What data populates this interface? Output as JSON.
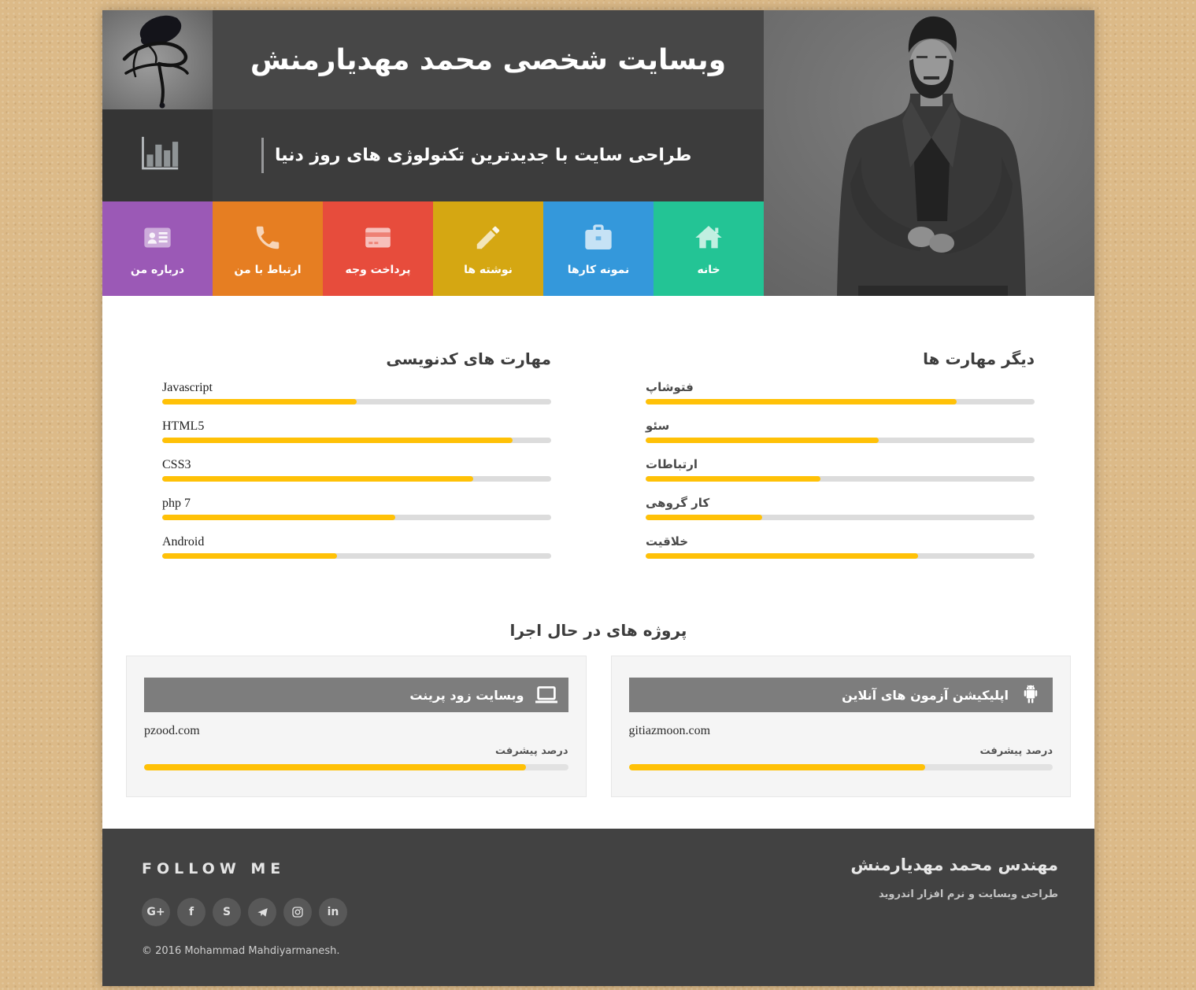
{
  "header": {
    "title": "وبسایت شخصی محمد مهدیارمنش",
    "tagline": "طراحی سایت با جدیدترین تکنولوژی های روز دنیا",
    "logo_icon": "calligraphy-logo",
    "stats_icon": "bar-chart-icon"
  },
  "nav": {
    "items": [
      {
        "label": "درباره من",
        "icon": "id-card-icon",
        "color": "#9b59b6"
      },
      {
        "label": "ارتباط با من",
        "icon": "phone-icon",
        "color": "#e67e22"
      },
      {
        "label": "پرداخت وجه",
        "icon": "credit-card-icon",
        "color": "#e74c3c"
      },
      {
        "label": "نوشته ها",
        "icon": "pencil-icon",
        "color": "#d5a712"
      },
      {
        "label": "نمونه کارها",
        "icon": "briefcase-icon",
        "color": "#3498db"
      },
      {
        "label": "خانه",
        "icon": "home-icon",
        "color": "#23c495"
      }
    ]
  },
  "skills": {
    "coding": {
      "title": "مهارت های کدنویسی",
      "items": [
        {
          "label": "Javascript",
          "percent": 50
        },
        {
          "label": "HTML5",
          "percent": 90
        },
        {
          "label": "CSS3",
          "percent": 80
        },
        {
          "label": "php 7",
          "percent": 60
        },
        {
          "label": "Android",
          "percent": 45
        }
      ]
    },
    "other": {
      "title": "دیگر مهارت ها",
      "items": [
        {
          "label": "فتوشاپ",
          "percent": 80
        },
        {
          "label": "سئو",
          "percent": 60
        },
        {
          "label": "ارتباطات",
          "percent": 45
        },
        {
          "label": "کار گروهی",
          "percent": 30
        },
        {
          "label": "خلاقیت",
          "percent": 70
        }
      ]
    }
  },
  "projects": {
    "title": "پروژه های در حال اجرا",
    "progress_label": "درصد پیشرفت",
    "items": [
      {
        "name": "وبسایت زود پرینت",
        "domain": "pzood.com",
        "percent": 90,
        "icon": "laptop-icon"
      },
      {
        "name": "اپلیکیشن آزمون های آنلاین",
        "domain": "gitiazmoon.com",
        "percent": 70,
        "icon": "android-icon"
      }
    ]
  },
  "footer": {
    "follow_title": "FOLLOW ME",
    "social": [
      {
        "name": "google-plus-icon",
        "glyph": "G+"
      },
      {
        "name": "facebook-icon",
        "glyph": "f"
      },
      {
        "name": "skype-icon",
        "glyph": "S"
      },
      {
        "name": "telegram-icon",
        "glyph": "svg:telegram"
      },
      {
        "name": "instagram-icon",
        "glyph": "svg:instagram"
      },
      {
        "name": "linkedin-icon",
        "glyph": "in"
      }
    ],
    "copyright": "© 2016 Mohammad Mahdiyarmanesh.",
    "name": "مهندس محمد مهدیارمنش",
    "subtitle": "طراحی وبسایت و نرم افزار اندروید"
  },
  "colors": {
    "accent_yellow": "#ffc107",
    "track_gray": "#dcdcdc",
    "header_dark": "#474747",
    "header_darker": "#3c3c3c",
    "footer_bg": "#424242",
    "card_header": "#7d7d7d",
    "page_texture": "#dcba88"
  }
}
